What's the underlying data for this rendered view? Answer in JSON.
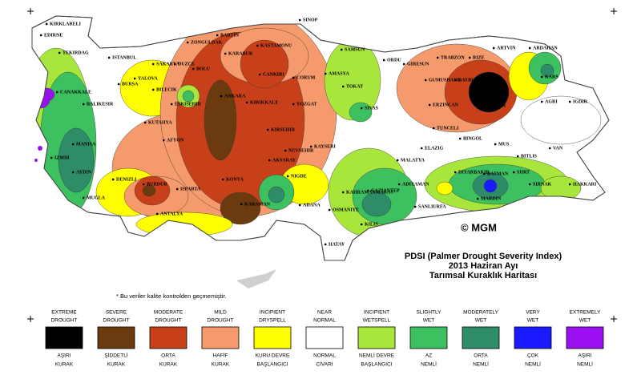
{
  "title": [
    "PDSI (Palmer Drought Severity Index)",
    "2013 Haziran Ayı",
    "Tarımsal Kuraklık Haritası"
  ],
  "copyright": "© MGM",
  "note": "* Bu veriler kalite kontrolden geçmemiştir.",
  "legend": [
    {
      "top": [
        "EXTREME",
        "DROUGHT"
      ],
      "bottom": [
        "AŞIRI",
        "KURAK"
      ],
      "color": "#000000"
    },
    {
      "top": [
        "SEVERE",
        "DROUGHT"
      ],
      "bottom": [
        "ŞİDDETLİ",
        "KURAK"
      ],
      "color": "#6b3a0e"
    },
    {
      "top": [
        "MODERATE",
        "DROUGHT"
      ],
      "bottom": [
        "ORTA",
        "KURAK"
      ],
      "color": "#c8401a"
    },
    {
      "top": [
        "MILD",
        "DROUGHT"
      ],
      "bottom": [
        "HAFİF",
        "KURAK"
      ],
      "color": "#f59a6c"
    },
    {
      "top": [
        "INCIPIENT",
        "DRYSPELL"
      ],
      "bottom": [
        "KURU DEVRE",
        "BAŞLANGICI"
      ],
      "color": "#ffff00"
    },
    {
      "top": [
        "NEAR",
        "NORMAL"
      ],
      "bottom": [
        "NORMAL",
        "CİVARI"
      ],
      "color": "#ffffff"
    },
    {
      "top": [
        "INCIPIENT",
        "WETSPELL"
      ],
      "bottom": [
        "NEMLİ DEVRE",
        "BAŞLANGICI"
      ],
      "color": "#a8e63c"
    },
    {
      "top": [
        "SLIGHTLY",
        "WET"
      ],
      "bottom": [
        "AZ",
        "NEMLİ"
      ],
      "color": "#3cc060"
    },
    {
      "top": [
        "MODERATELY",
        "WET"
      ],
      "bottom": [
        "ORTA",
        "NEMLİ"
      ],
      "color": "#2e8c68"
    },
    {
      "top": [
        "VERY",
        "WET"
      ],
      "bottom": [
        "ÇOK",
        "NEMLİ"
      ],
      "color": "#1a1aff"
    },
    {
      "top": [
        "EXTREMELY",
        "WET"
      ],
      "bottom": [
        "AŞIRI",
        "NEMLİ"
      ],
      "color": "#9a10f0"
    }
  ],
  "cities": [
    "KIRKLARELI",
    "EDIRNE",
    "TEKIRDAG",
    "ISTANBUL",
    "SAKARYA",
    "DUZCE",
    "BOLU",
    "BARTIN",
    "ZONGULDAK",
    "KARABUK",
    "KASTAMONU",
    "SINOP",
    "SAMSUN",
    "ORDU",
    "GIRESUN",
    "TRABZON",
    "RIZE",
    "ARTVIN",
    "ARDAHAN",
    "KARS",
    "IGDIR",
    "AGRI",
    "ERZURUM",
    "BAYBURT",
    "GUMUSHANE",
    "ERZINCAN",
    "TUNCELI",
    "BINGOL",
    "MUS",
    "BITLIS",
    "VAN",
    "HAKKARI",
    "SIRNAK",
    "SIIRT",
    "BATMAN",
    "MARDIN",
    "DIYARBAKIR",
    "ELAZIG",
    "MALATYA",
    "ADIYAMAN",
    "SANLIURFA",
    "GAZIANTEP",
    "KILIS",
    "OSMANIYE",
    "HATAY",
    "ADANA",
    "NIGDE",
    "KAHRAMANMARAS",
    "KAYSERI",
    "SIVAS",
    "TOKAT",
    "AMASYA",
    "CORUM",
    "YOZGAT",
    "KIRSEHIR",
    "NEVSEHIR",
    "AKSARAY",
    "KIRIKKALE",
    "CANKIRI",
    "ANKARA",
    "ESKISEHIR",
    "BILECIK",
    "BURSA",
    "YALOVA",
    "BALIKESIR",
    "CANAKKALE",
    "KUTAHYA",
    "MANISA",
    "IZMIR",
    "AYDIN",
    "MUGLA",
    "DENIZLI",
    "BURDUR",
    "ISPARTA",
    "AFYON",
    "KONYA",
    "KARAMAN",
    "ANTALYA"
  ]
}
